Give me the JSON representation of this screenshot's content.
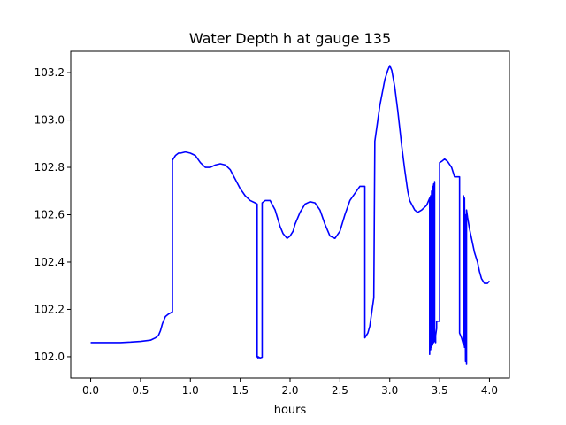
{
  "chart_data": {
    "type": "line",
    "title": "Water Depth h at gauge 135",
    "xlabel": "hours",
    "ylabel": "",
    "xlim": [
      -0.2,
      4.2
    ],
    "ylim": [
      101.91,
      103.29
    ],
    "xticks": [
      0.0,
      0.5,
      1.0,
      1.5,
      2.0,
      2.5,
      3.0,
      3.5,
      4.0
    ],
    "xtick_labels": [
      "0.0",
      "0.5",
      "1.0",
      "1.5",
      "2.0",
      "2.5",
      "3.0",
      "3.5",
      "4.0"
    ],
    "yticks": [
      102.0,
      102.2,
      102.4,
      102.6,
      102.8,
      103.0,
      103.2
    ],
    "ytick_labels": [
      "102.0",
      "102.2",
      "102.4",
      "102.6",
      "102.8",
      "103.0",
      "103.2"
    ],
    "grid": false,
    "legend": "none",
    "series": [
      {
        "color": "#0000ff",
        "x": [
          0.0,
          0.1,
          0.2,
          0.3,
          0.4,
          0.5,
          0.6,
          0.65,
          0.68,
          0.7,
          0.72,
          0.75,
          0.78,
          0.82,
          0.82,
          0.85,
          0.88,
          0.9,
          0.95,
          1.0,
          1.05,
          1.1,
          1.15,
          1.2,
          1.25,
          1.3,
          1.35,
          1.4,
          1.45,
          1.5,
          1.55,
          1.6,
          1.65,
          1.67,
          1.67,
          1.68,
          1.68,
          1.7,
          1.72,
          1.72,
          1.75,
          1.8,
          1.85,
          1.9,
          1.93,
          1.97,
          2.0,
          2.03,
          2.05,
          2.1,
          2.15,
          2.2,
          2.25,
          2.3,
          2.35,
          2.4,
          2.45,
          2.5,
          2.55,
          2.6,
          2.65,
          2.7,
          2.75,
          2.75,
          2.78,
          2.8,
          2.84,
          2.85,
          2.85,
          2.88,
          2.9,
          2.95,
          2.98,
          3.0,
          3.02,
          3.05,
          3.08,
          3.12,
          3.15,
          3.18,
          3.2,
          3.25,
          3.28,
          3.32,
          3.37,
          3.4,
          3.4,
          3.41,
          3.41,
          3.42,
          3.42,
          3.43,
          3.43,
          3.44,
          3.44,
          3.45,
          3.45,
          3.46,
          3.46,
          3.47,
          3.47,
          3.5,
          3.5,
          3.52,
          3.55,
          3.58,
          3.62,
          3.65,
          3.7,
          3.7,
          3.72,
          3.74,
          3.74,
          3.75,
          3.75,
          3.76,
          3.76,
          3.77,
          3.77,
          3.78,
          3.8,
          3.83,
          3.85,
          3.88,
          3.9,
          3.92,
          3.95,
          3.98,
          4.0
        ],
        "y": [
          102.06,
          102.06,
          102.06,
          102.06,
          102.062,
          102.065,
          102.07,
          102.08,
          102.09,
          102.11,
          102.14,
          102.17,
          102.18,
          102.19,
          102.83,
          102.85,
          102.86,
          102.86,
          102.865,
          102.86,
          102.85,
          102.82,
          102.8,
          102.8,
          102.81,
          102.815,
          102.81,
          102.79,
          102.75,
          102.71,
          102.68,
          102.66,
          102.65,
          102.645,
          102.0,
          101.995,
          102.0,
          101.995,
          101.998,
          102.65,
          102.66,
          102.66,
          102.62,
          102.55,
          102.52,
          102.5,
          102.51,
          102.53,
          102.56,
          102.61,
          102.645,
          102.655,
          102.65,
          102.62,
          102.56,
          102.51,
          102.5,
          102.53,
          102.6,
          102.66,
          102.69,
          102.72,
          102.72,
          102.08,
          102.1,
          102.13,
          102.25,
          102.9,
          102.91,
          103.0,
          103.06,
          103.17,
          103.21,
          103.23,
          103.21,
          103.14,
          103.04,
          102.89,
          102.79,
          102.7,
          102.66,
          102.62,
          102.61,
          102.62,
          102.64,
          102.67,
          102.01,
          102.68,
          102.03,
          102.7,
          102.04,
          102.72,
          102.05,
          102.73,
          102.06,
          102.74,
          102.07,
          102.06,
          102.09,
          102.12,
          102.15,
          102.15,
          102.82,
          102.825,
          102.835,
          102.825,
          102.8,
          102.76,
          102.76,
          102.1,
          102.08,
          102.05,
          102.68,
          102.04,
          102.67,
          101.98,
          102.6,
          101.97,
          102.62,
          102.59,
          102.54,
          102.48,
          102.44,
          102.4,
          102.36,
          102.33,
          102.31,
          102.31,
          102.32
        ]
      }
    ]
  }
}
